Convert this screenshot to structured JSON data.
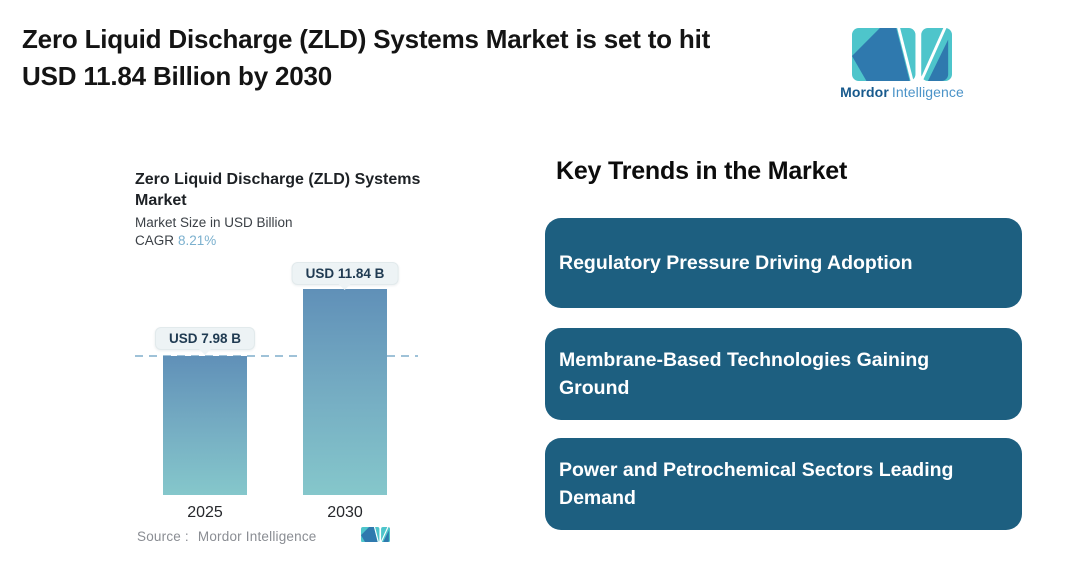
{
  "header": {
    "title_line1": "Zero Liquid Discharge (ZLD) Systems Market is set to hit",
    "title_line2": "USD 11.84 Billion by 2030",
    "brand_bold": "Mordor",
    "brand_light": "Intelligence"
  },
  "chart": {
    "title_line1": "Zero Liquid Discharge (ZLD) Systems",
    "title_line2": "Market",
    "subtitle": "Market Size in USD Billion",
    "cagr_label": "CAGR",
    "cagr_value": "8.21%",
    "bars": [
      {
        "year": "2025",
        "label": "USD 7.98 B"
      },
      {
        "year": "2030",
        "label": "USD 11.84 B"
      }
    ],
    "source_label": "Source :",
    "source_value": "Mordor Intelligence"
  },
  "chart_data": {
    "type": "bar",
    "categories": [
      "2025",
      "2030"
    ],
    "values": [
      7.98,
      11.84
    ],
    "value_labels": [
      "USD 7.98 B",
      "USD 11.84 B"
    ],
    "title": "Zero Liquid Discharge (ZLD) Systems Market",
    "subtitle": "Market Size in USD Billion",
    "unit": "USD Billion",
    "cagr": "8.21%",
    "reference_line_y": 7.98,
    "grid": false,
    "legend": false,
    "source": "Mordor Intelligence"
  },
  "trends": {
    "heading": "Key Trends in the Market",
    "items": [
      {
        "label": "Regulatory Pressure Driving Adoption"
      },
      {
        "label": "Membrane-Based Technologies Gaining Ground"
      },
      {
        "label": "Power and Petrochemical Sectors Leading Demand"
      }
    ]
  },
  "colors": {
    "trend_box": "#1d5f80",
    "logo_teal": "#4ec5cb",
    "logo_blue": "#2f79ae",
    "brand_dark": "#185a8d",
    "brand_light": "#4b93c8",
    "bar_top": "#6090b8",
    "bar_bottom": "#85c7cb",
    "dash_color": "#9fc2d8",
    "tooltip_bg": "#edf3f5",
    "cagr_color": "#7bb0ce"
  }
}
